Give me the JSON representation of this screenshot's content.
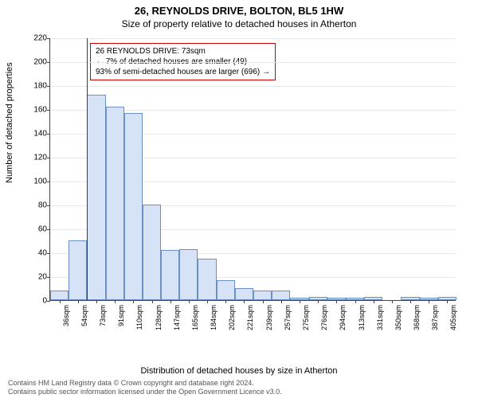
{
  "title_main": "26, REYNOLDS DRIVE, BOLTON, BL5 1HW",
  "title_sub": "Size of property relative to detached houses in Atherton",
  "y_label": "Number of detached properties",
  "x_label": "Distribution of detached houses by size in Atherton",
  "footer_line1": "Contains HM Land Registry data © Crown copyright and database right 2024.",
  "footer_line2": "Contains public sector information licensed under the Open Government Licence v3.0.",
  "chart": {
    "type": "bar",
    "background_color": "#ffffff",
    "grid_color": "#e8e8e8",
    "axis_color": "#444444",
    "bar_fill": "#d6e2f5",
    "bar_border": "#6a8fc5",
    "marker_color": "#d00000",
    "ylim": [
      0,
      220
    ],
    "ytick_step": 20,
    "bar_width_ratio": 1.0,
    "marker_position": 2.0,
    "categories": [
      "36sqm",
      "54sqm",
      "73sqm",
      "91sqm",
      "110sqm",
      "128sqm",
      "147sqm",
      "165sqm",
      "184sqm",
      "202sqm",
      "221sqm",
      "239sqm",
      "257sqm",
      "275sqm",
      "276sqm",
      "294sqm",
      "313sqm",
      "331sqm",
      "350sqm",
      "368sqm",
      "387sqm",
      "405sqm"
    ],
    "values": [
      8,
      50,
      172,
      162,
      157,
      80,
      42,
      43,
      35,
      17,
      10,
      8,
      8,
      2,
      3,
      2,
      2,
      3,
      0,
      3,
      2,
      3
    ],
    "label_fontsize": 10,
    "title_fontsize": 13
  },
  "annotation": {
    "line1": "26 REYNOLDS DRIVE: 73sqm",
    "line2": "← 7% of detached houses are smaller (49)",
    "line3": "93% of semi-detached houses are larger (696) →"
  }
}
